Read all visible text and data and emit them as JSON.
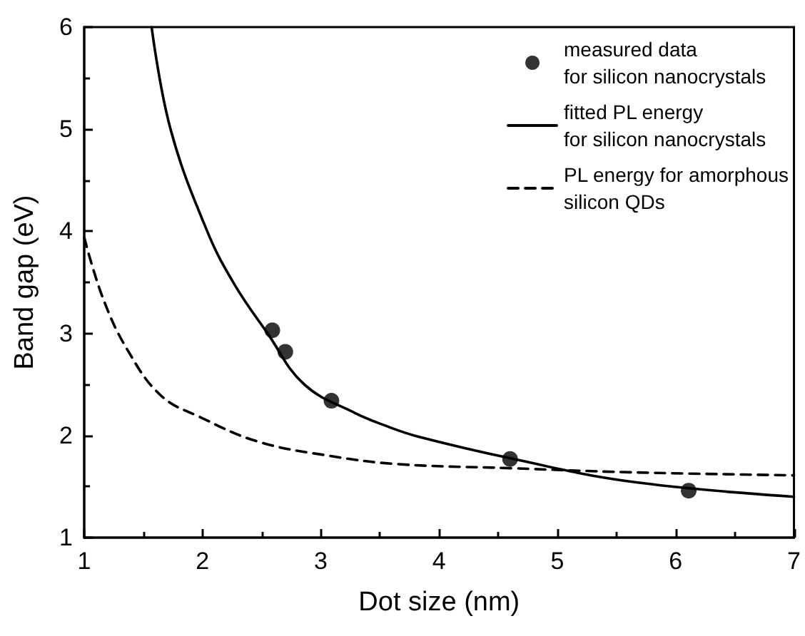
{
  "chart_data": {
    "type": "line",
    "xlabel": "Dot size (nm)",
    "ylabel": "Band gap (eV)",
    "xlim": [
      1,
      7
    ],
    "xticks": [
      1,
      2,
      3,
      4,
      5,
      6,
      7
    ],
    "ylim": [
      1,
      6
    ],
    "yticks": [
      1,
      2,
      3,
      4,
      5,
      6
    ],
    "grid": false,
    "legend": "top right",
    "series": [
      {
        "name": "measured data\nfor silicon nanocrystals",
        "type": "scatter",
        "marker": "circle",
        "color": "#000000",
        "x": [
          2.59,
          2.7,
          3.09,
          4.6,
          6.11
        ],
        "values": [
          3.03,
          2.82,
          2.34,
          1.77,
          1.46
        ]
      },
      {
        "name": "fitted PL energy\nfor silicon nanocrystals",
        "line_style": "solid",
        "color": "#000000",
        "x": [
          1.57,
          1.73,
          2.04,
          2.27,
          2.55,
          2.86,
          3.29,
          3.56,
          3.82,
          4.59,
          5.61,
          7.0
        ],
        "values": [
          6.0,
          5.0,
          4.0,
          3.48,
          3.0,
          2.5,
          2.22,
          2.09,
          1.99,
          1.78,
          1.55,
          1.4
        ]
      },
      {
        "name": "PL energy for amorphous\nsilicon QDs",
        "line_style": "dashed",
        "color": "#000000",
        "x": [
          1.0,
          1.16,
          1.37,
          1.65,
          1.98,
          2.47,
          3.08,
          3.65,
          4.6,
          5.61,
          7.0
        ],
        "values": [
          3.94,
          3.34,
          2.83,
          2.39,
          2.18,
          1.94,
          1.8,
          1.72,
          1.68,
          1.64,
          1.61
        ]
      }
    ]
  }
}
